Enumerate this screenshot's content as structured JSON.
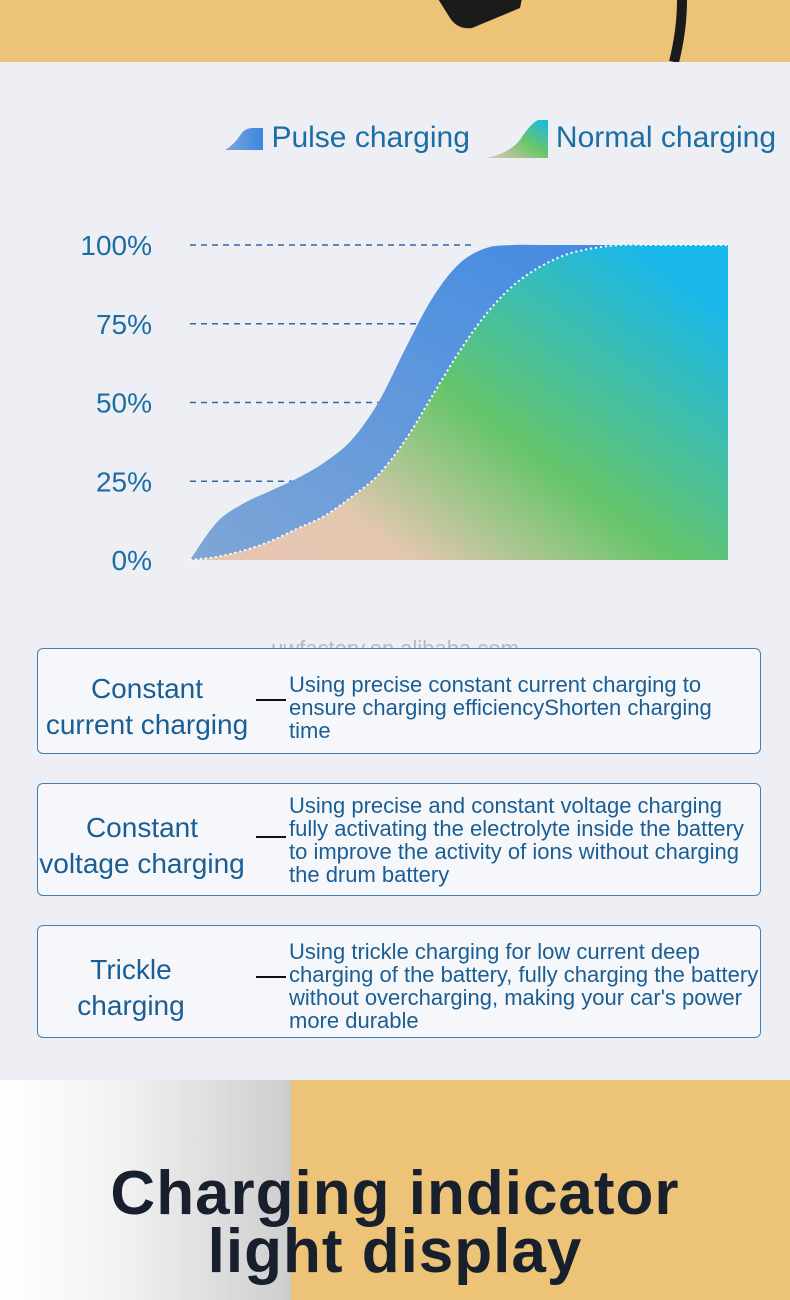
{
  "legend": {
    "pulse": "Pulse charging",
    "normal": "Normal charging"
  },
  "chart_data": {
    "type": "area",
    "ylim": [
      0,
      100
    ],
    "y_ticks": [
      "100%",
      "75%",
      "50%",
      "25%",
      "0%"
    ],
    "series": [
      {
        "name": "Pulse charging",
        "x": [
          0,
          5,
          10,
          15,
          20,
          25,
          30,
          35,
          40,
          45,
          50,
          55,
          60,
          65,
          70,
          75,
          80,
          85,
          90,
          95,
          100
        ],
        "values": [
          0,
          12,
          18,
          22,
          26,
          31,
          38,
          50,
          67,
          83,
          94,
          99,
          100,
          100,
          100,
          100,
          100,
          100,
          100,
          100,
          100
        ]
      },
      {
        "name": "Normal charging",
        "x": [
          0,
          5,
          10,
          15,
          20,
          25,
          30,
          35,
          40,
          45,
          50,
          55,
          60,
          65,
          70,
          75,
          80,
          85,
          90,
          95,
          100
        ],
        "values": [
          0,
          1,
          3,
          6,
          10,
          14,
          20,
          27,
          38,
          52,
          66,
          78,
          87,
          93,
          97,
          99,
          100,
          100,
          100,
          100,
          100
        ]
      }
    ],
    "colors": {
      "pulse_start": "#7fa6d6",
      "pulse_end": "#3b87e4",
      "normal_start": "#e8c4b4",
      "normal_mid": "#66c56a",
      "normal_end": "#18b7ec",
      "axis_text": "#1a6ea3",
      "grid": "#2f6ca6"
    }
  },
  "watermark": "uwfactory.en.alibaba.com",
  "cards": [
    {
      "title_line1": "Constant",
      "title_line2": "current charging",
      "desc": "Using precise constant current charging to ensure charging efficiencyShorten charging time"
    },
    {
      "title_line1": "Constant",
      "title_line2": "voltage charging",
      "desc": "Using precise and constant voltage charging fully activating the electrolyte inside the battery to improve the activity of ions without charging the drum battery"
    },
    {
      "title_line1": "Trickle",
      "title_line2": "charging",
      "desc": "Using trickle charging for low current deep charging of the battery, fully charging the battery without overcharging, making your car's power more durable"
    }
  ],
  "headline": {
    "line1": "Charging indicator",
    "line2": "light display"
  }
}
